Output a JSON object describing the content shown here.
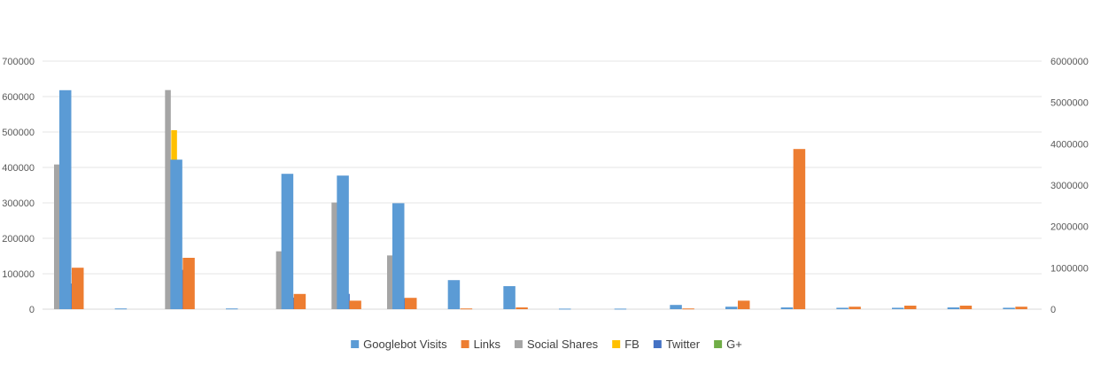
{
  "chart_data": {
    "type": "bar",
    "title": "",
    "xlabel": "",
    "ylabel": "",
    "ylim": [
      0,
      700000
    ],
    "y2lim": [
      0,
      6000000
    ],
    "yticks": [
      "0",
      "100000",
      "200000",
      "300000",
      "400000",
      "500000",
      "600000",
      "700000"
    ],
    "y2ticks": [
      "0",
      "1000000",
      "2000000",
      "3000000",
      "4000000",
      "5000000",
      "6000000"
    ],
    "categories": [
      "",
      "",
      "",
      "",
      "",
      "",
      "",
      "",
      "",
      "",
      "",
      "",
      "",
      "",
      "",
      "",
      "",
      ""
    ],
    "grid": true,
    "legend_position": "bottom",
    "secondary_series": {
      "type": "bar",
      "axis": "right",
      "series": [
        {
          "name": "Social Shares",
          "color": "#a5a5a5",
          "values": [
            3500000,
            0,
            5300000,
            0,
            1400000,
            2580000,
            1300000,
            0,
            0,
            0,
            0,
            0,
            0,
            0,
            0,
            0,
            0,
            0
          ]
        },
        {
          "name": "FB",
          "color": "#ffc000",
          "values": [
            2850000,
            0,
            4330000,
            0,
            1100000,
            2200000,
            1030000,
            0,
            0,
            0,
            0,
            0,
            0,
            0,
            0,
            0,
            0,
            0
          ]
        },
        {
          "name": "Twitter",
          "color": "#4472c4",
          "values": [
            620000,
            0,
            950000,
            0,
            280000,
            370000,
            270000,
            0,
            0,
            0,
            0,
            0,
            0,
            0,
            0,
            0,
            0,
            0
          ]
        },
        {
          "name": "G+",
          "color": "#70ad47",
          "values": [
            15000,
            0,
            20000,
            0,
            10000,
            12000,
            8000,
            0,
            0,
            0,
            0,
            5000,
            0,
            5000,
            5000,
            5000,
            5000,
            5000
          ]
        }
      ]
    },
    "primary_series": {
      "type": "bar",
      "axis": "left",
      "series": [
        {
          "name": "Googlebot Visits",
          "color": "#5b9bd5",
          "values": [
            618000,
            2000,
            422000,
            2000,
            382000,
            377000,
            299000,
            82000,
            65000,
            1500,
            1500,
            12000,
            7000,
            5000,
            4000,
            4000,
            5000,
            4000
          ]
        },
        {
          "name": "Links",
          "color": "#ed7d31",
          "values": [
            117000,
            0,
            145000,
            0,
            43000,
            24000,
            32000,
            2000,
            5000,
            0,
            0,
            2000,
            24000,
            452000,
            7000,
            10000,
            10000,
            7000
          ]
        }
      ]
    }
  },
  "legend": [
    {
      "label": "Googlebot Visits",
      "color": "#5b9bd5"
    },
    {
      "label": "Links",
      "color": "#ed7d31"
    },
    {
      "label": "Social Shares",
      "color": "#a5a5a5"
    },
    {
      "label": "FB",
      "color": "#ffc000"
    },
    {
      "label": "Twitter",
      "color": "#4472c4"
    },
    {
      "label": "G+",
      "color": "#70ad47"
    }
  ]
}
